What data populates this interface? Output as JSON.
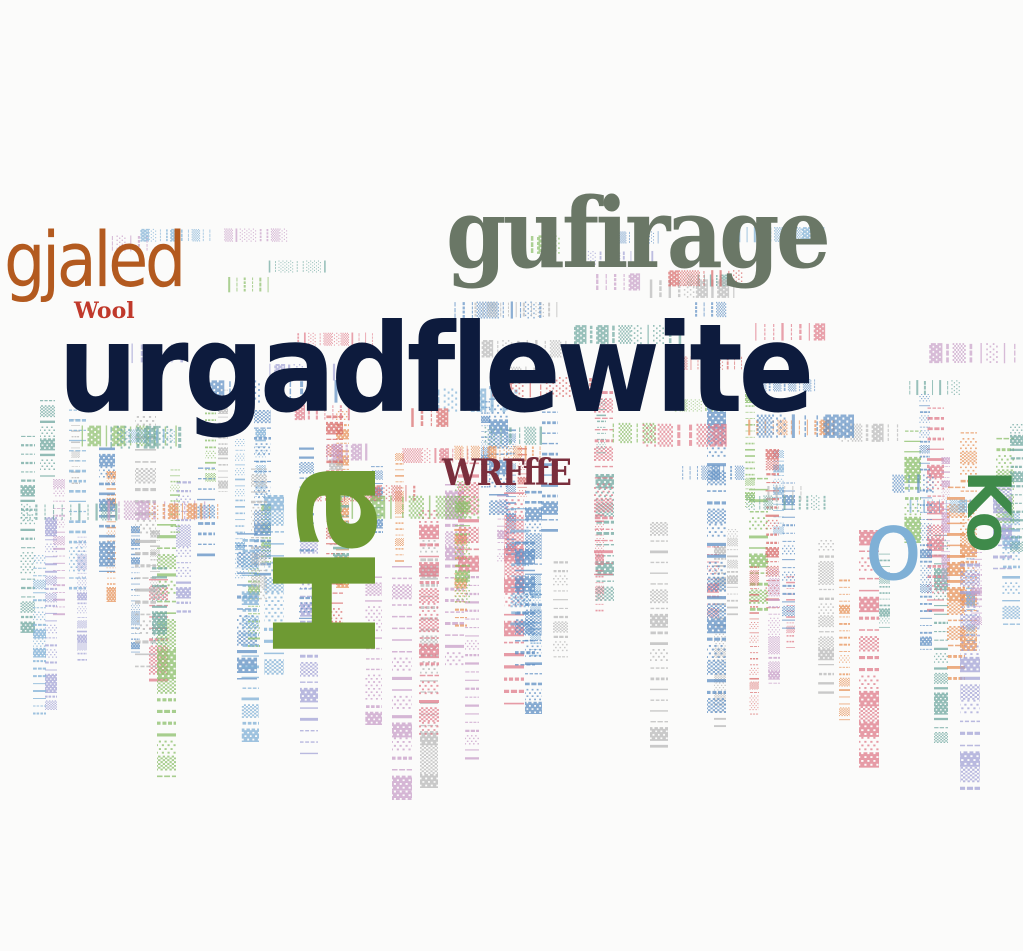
{
  "words": {
    "main": "urgadflewite",
    "top": "gufirage",
    "left": "gjaled",
    "small": "Wool",
    "mid": "WRFffE",
    "green": "Ha",
    "blue": "o",
    "right": "Ko"
  },
  "colors": {
    "background": "#fbfbfa",
    "navy": "#0d1b3d",
    "grey_green": "#6a7766",
    "orange": "#b35a1f",
    "green": "#6e9a33",
    "blue": "#7fb0d6",
    "red": "#c0392b",
    "maroon": "#7a2e3c"
  }
}
